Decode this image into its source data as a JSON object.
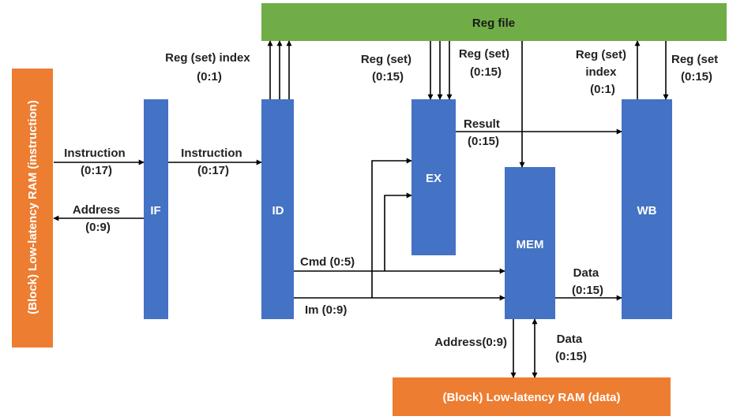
{
  "colors": {
    "block": "#4472C4",
    "ram": "#ED7D31",
    "regfile": "#70AD47"
  },
  "blocks": {
    "regfile": "Reg file",
    "ram_instruction": "(Block) Low-latency RAM (instruction)",
    "ram_data": "(Block) Low-latency RAM (data)",
    "if": "IF",
    "id": "ID",
    "ex": "EX",
    "mem": "MEM",
    "wb": "WB"
  },
  "labels": {
    "ram_if_instruction": [
      "Instruction",
      "(0:17)"
    ],
    "if_ram_address": [
      "Address",
      "(0:9)"
    ],
    "if_id_instruction": [
      "Instruction",
      "(0:17)"
    ],
    "id_reg_index": [
      "Reg (set) index",
      "(0:1)"
    ],
    "reg_ex": [
      "Reg (set)",
      "(0:15)"
    ],
    "reg_mem": [
      "Reg (set)",
      "(0:15)"
    ],
    "wb_reg_index": [
      "Reg (set)",
      "index",
      "(0:1)"
    ],
    "reg_wb": [
      "Reg (set",
      "(0:15)"
    ],
    "ex_result": [
      "Result",
      "(0:15)"
    ],
    "id_cmd": "Cmd (0:5)",
    "id_im": "Im (0:9)",
    "mem_wb_data": [
      "Data",
      "(0:15)"
    ],
    "mem_ram_address": "Address(0:9)",
    "ram_mem_data": [
      "Data",
      "(0:15)"
    ]
  }
}
